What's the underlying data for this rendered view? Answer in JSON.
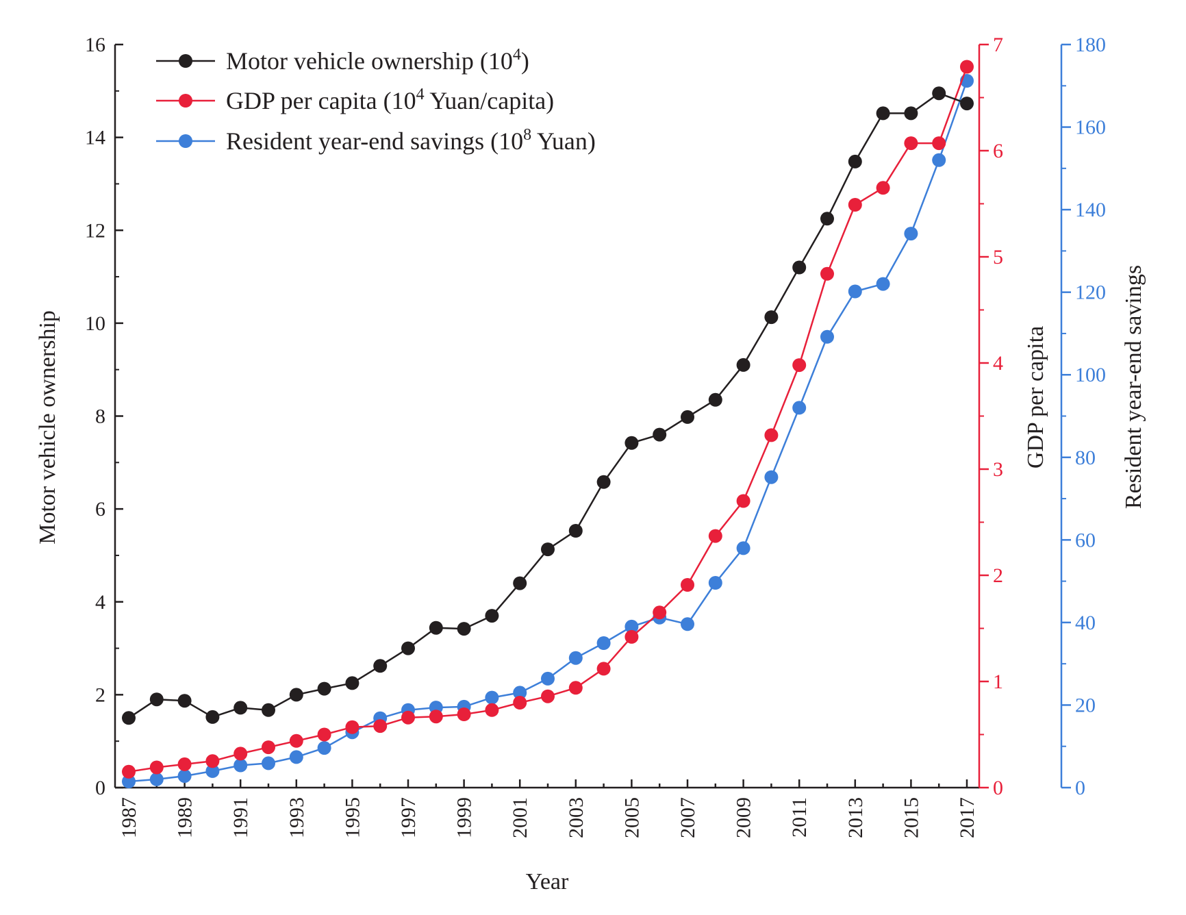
{
  "chart_data": {
    "type": "line",
    "xlabel": "Year",
    "x": [
      1987,
      1988,
      1989,
      1990,
      1991,
      1992,
      1993,
      1994,
      1995,
      1996,
      1997,
      1998,
      1999,
      2000,
      2001,
      2002,
      2003,
      2004,
      2005,
      2006,
      2007,
      2008,
      2009,
      2010,
      2011,
      2012,
      2013,
      2014,
      2015,
      2016,
      2017
    ],
    "x_tick_labels": [
      "1987",
      "1989",
      "1991",
      "1993",
      "1995",
      "1997",
      "1999",
      "2001",
      "2003",
      "2005",
      "2007",
      "2009",
      "2011",
      "2013",
      "2015",
      "2017"
    ],
    "axes": [
      {
        "id": "left",
        "label": "Motor vehicle ownership",
        "color": "#231f20",
        "ylim": [
          0,
          16
        ],
        "ticks": [
          "0",
          "2",
          "4",
          "6",
          "8",
          "10",
          "12",
          "14",
          "16"
        ]
      },
      {
        "id": "right1",
        "label": "GDP per capita",
        "color": "#e8203a",
        "ylim": [
          0,
          7
        ],
        "ticks": [
          "0",
          "1",
          "2",
          "3",
          "4",
          "5",
          "6",
          "7"
        ]
      },
      {
        "id": "right2",
        "label": "Resident year-end savings",
        "color": "#3d7fd9",
        "ylim": [
          0,
          180
        ],
        "ticks": [
          "0",
          "20",
          "40",
          "60",
          "80",
          "100",
          "120",
          "140",
          "160",
          "180"
        ]
      }
    ],
    "series": [
      {
        "name": "Motor vehicle ownership",
        "legend_main": "Motor vehicle ownership (10",
        "legend_sup": "4",
        "legend_tail": ")",
        "axis": "left",
        "color": "#231f20",
        "values": [
          1.5,
          1.9,
          1.87,
          1.52,
          1.72,
          1.67,
          2.0,
          2.13,
          2.25,
          2.62,
          3.0,
          3.44,
          3.42,
          3.7,
          4.4,
          5.13,
          5.53,
          6.58,
          7.42,
          7.6,
          7.98,
          8.35,
          9.1,
          10.13,
          11.2,
          12.25,
          13.48,
          14.52,
          14.52,
          14.95,
          14.73
        ]
      },
      {
        "name": "GDP per capita",
        "legend_main": "GDP per capita (10",
        "legend_sup": "4",
        "legend_tail": " Yuan/capita)",
        "axis": "right1",
        "color": "#e8203a",
        "values": [
          0.15,
          0.19,
          0.22,
          0.25,
          0.32,
          0.38,
          0.44,
          0.5,
          0.57,
          0.58,
          0.66,
          0.67,
          0.69,
          0.73,
          0.8,
          0.86,
          0.94,
          1.12,
          1.42,
          1.65,
          1.91,
          2.37,
          2.7,
          3.32,
          3.98,
          4.84,
          5.49,
          5.65,
          6.07,
          6.07,
          6.79
        ]
      },
      {
        "name": "Resident year-end savings",
        "legend_main": "Resident year-end savings (10",
        "legend_sup": "8",
        "legend_tail": " Yuan)",
        "axis": "right2",
        "color": "#3d7fd9",
        "values": [
          1.5,
          2.0,
          2.8,
          4.0,
          5.4,
          5.9,
          7.4,
          9.6,
          13.4,
          16.8,
          18.8,
          19.4,
          19.6,
          21.8,
          23.0,
          26.4,
          31.4,
          35.0,
          39.0,
          41.2,
          39.6,
          49.6,
          58.0,
          75.2,
          92.0,
          109.2,
          120.2,
          122.0,
          134.2,
          152.0,
          171.2
        ]
      }
    ]
  }
}
